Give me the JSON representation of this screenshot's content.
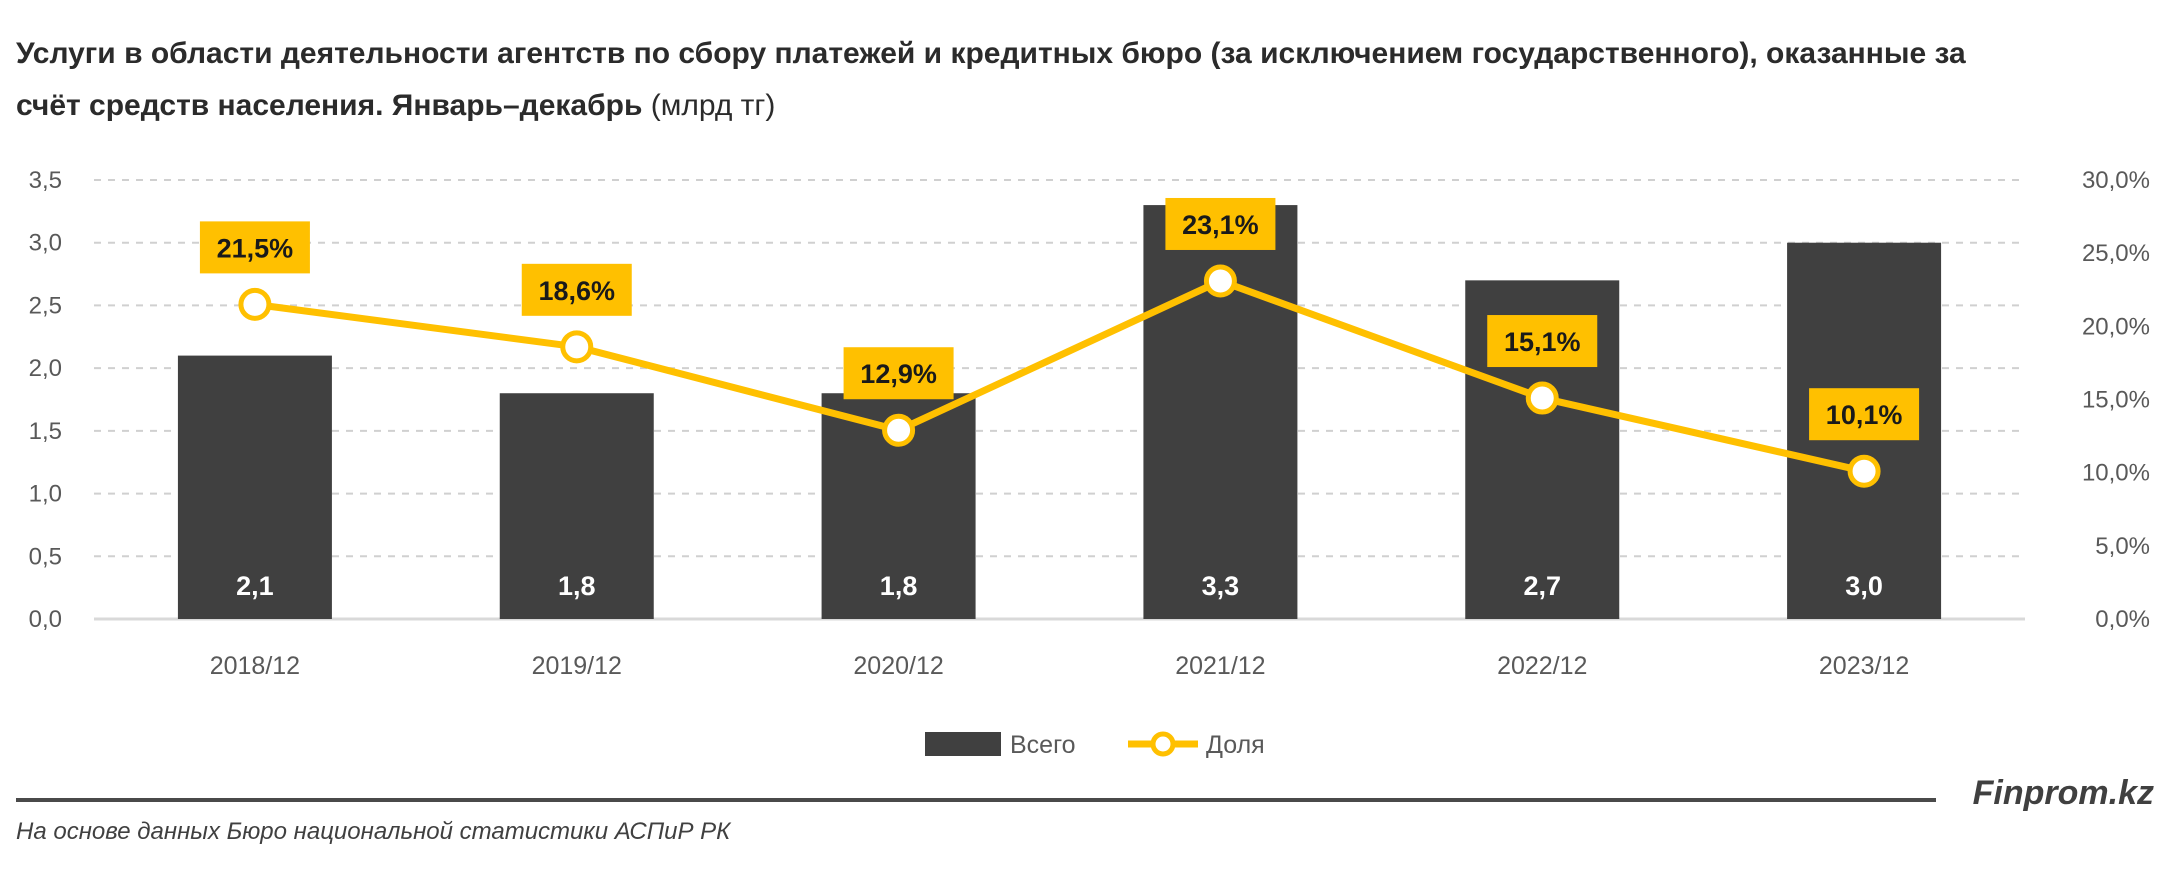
{
  "title": {
    "main": "Услуги в области деятельности агентств по сбору платежей и кредитных бюро (за исключением государственного), оказанные за счёт средств населения. Январь–декабрь",
    "unit": " (млрд тг)"
  },
  "chart_data": {
    "type": "bar+line",
    "categories": [
      "2018/12",
      "2019/12",
      "2020/12",
      "2021/12",
      "2022/12",
      "2023/12"
    ],
    "series": [
      {
        "name": "Всего",
        "type": "bar",
        "axis": "left",
        "values": [
          2.1,
          1.8,
          1.8,
          3.3,
          2.7,
          3.0
        ],
        "labels": [
          "2,1",
          "1,8",
          "1,8",
          "3,3",
          "2,7",
          "3,0"
        ],
        "color": "#404040"
      },
      {
        "name": "Доля",
        "type": "line",
        "axis": "right",
        "values": [
          21.5,
          18.6,
          12.9,
          23.1,
          15.1,
          10.1
        ],
        "labels": [
          "21,5%",
          "18,6%",
          "12,9%",
          "23,1%",
          "15,1%",
          "10,1%"
        ],
        "color": "#FFC000"
      }
    ],
    "left_axis": {
      "range": [
        0,
        3.5
      ],
      "ticks": [
        "0,0",
        "0,5",
        "1,0",
        "1,5",
        "2,0",
        "2,5",
        "3,0",
        "3,5"
      ]
    },
    "right_axis": {
      "range": [
        0,
        30
      ],
      "ticks": [
        "0,0%",
        "5,0%",
        "10,0%",
        "15,0%",
        "20,0%",
        "25,0%",
        "30,0%"
      ]
    },
    "grid": true,
    "legend": "bottom-center"
  },
  "footer": {
    "brand": "Finprom.kz",
    "source": "На основе данных Бюро национальной статистики АСПиР РК"
  }
}
